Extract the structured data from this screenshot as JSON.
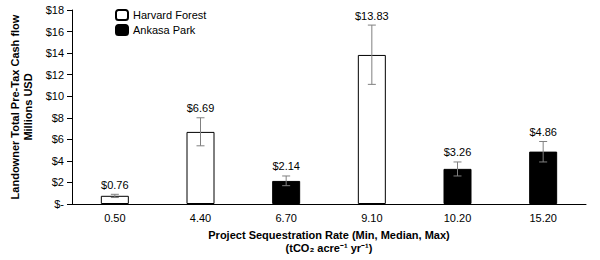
{
  "chart_data": {
    "type": "bar",
    "x_label": "Project Sequestration Rate (Min, Median, Max)\n(tCO₂ acre⁻¹ yr⁻¹)",
    "y_label": "Landowner Total Pre-Tax Cash flow\nMillions USD",
    "categories": [
      "0.50",
      "4.40",
      "6.70",
      "9.10",
      "10.20",
      "15.20"
    ],
    "series": [
      {
        "name": "Harvard Forest",
        "color": "#ffffff",
        "values": [
          0.76,
          6.69,
          null,
          13.83,
          null,
          null
        ],
        "value_labels": [
          "$0.76",
          "$6.69",
          null,
          "$13.83",
          null,
          null
        ],
        "error_low": [
          0.6,
          5.4,
          null,
          11.1,
          null,
          null
        ],
        "error_high": [
          0.9,
          8.0,
          null,
          16.6,
          null,
          null
        ]
      },
      {
        "name": "Ankasa Park",
        "color": "#000000",
        "values": [
          null,
          null,
          2.14,
          null,
          3.26,
          4.86
        ],
        "value_labels": [
          null,
          null,
          "$2.14",
          null,
          "$3.26",
          "$4.86"
        ],
        "error_low": [
          null,
          null,
          1.7,
          null,
          2.6,
          3.9
        ],
        "error_high": [
          null,
          null,
          2.6,
          null,
          3.9,
          5.8
        ]
      }
    ],
    "ylim": [
      0,
      18
    ],
    "yticks": [
      {
        "value": 0,
        "label": "$-"
      },
      {
        "value": 2,
        "label": "$2"
      },
      {
        "value": 4,
        "label": "$4"
      },
      {
        "value": 6,
        "label": "$6"
      },
      {
        "value": 8,
        "label": "$8"
      },
      {
        "value": 10,
        "label": "$10"
      },
      {
        "value": 12,
        "label": "$12"
      },
      {
        "value": 14,
        "label": "$14"
      },
      {
        "value": 16,
        "label": "$16"
      },
      {
        "value": 18,
        "label": "$18"
      }
    ],
    "grid": false,
    "legend": "upper left",
    "data_labels": true
  }
}
